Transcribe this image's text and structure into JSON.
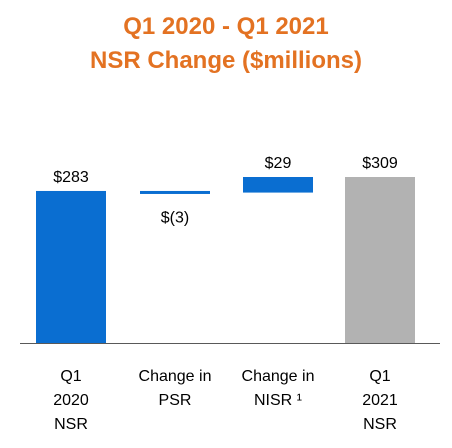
{
  "title_lines": [
    "Q1 2020 - Q1 2021",
    "NSR Change ($millions)"
  ],
  "colors": {
    "title": "#E37222",
    "increase": "#0A6ED1",
    "total": "#B2B2B2",
    "axis": "#595959",
    "text": "#000000"
  },
  "chart_data": {
    "type": "bar",
    "subtype": "waterfall",
    "title": "Q1 2020 - Q1 2021 NSR Change ($millions)",
    "categories": [
      [
        "Q1",
        "2020",
        "NSR"
      ],
      [
        "Change in",
        "PSR"
      ],
      [
        "Change in",
        "NISR ¹"
      ],
      [
        "Q1",
        "2021",
        "NSR"
      ]
    ],
    "values": [
      283,
      -3,
      29,
      309
    ],
    "kinds": [
      "total",
      "delta",
      "delta",
      "total"
    ],
    "data_labels": [
      "$283",
      "$(3)",
      "$29",
      "$309"
    ],
    "ylim": [
      0,
      320
    ],
    "grid": false,
    "legend": "none"
  }
}
